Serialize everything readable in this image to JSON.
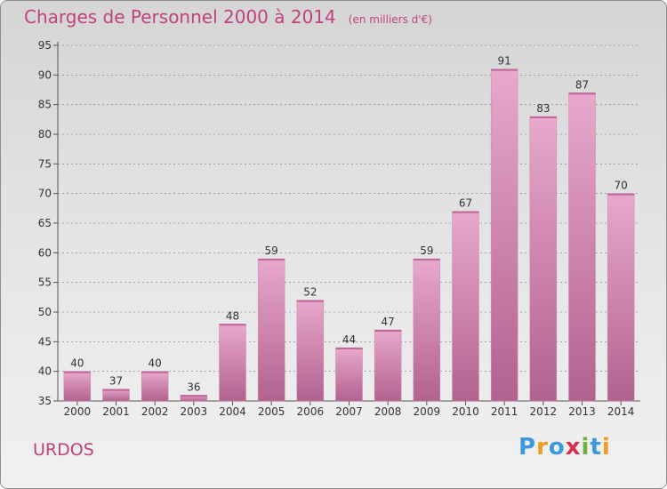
{
  "title": "Charges de Personnel 2000 à 2014",
  "subtitle": "(en milliers d'€)",
  "commune": "URDOS",
  "logo": {
    "text": "Proxiti",
    "letters": [
      "P",
      "r",
      "o",
      "x",
      "i",
      "t",
      "i"
    ],
    "colors": [
      "#3a9ad9",
      "#f29a1f",
      "#3a9ad9",
      "#d6304f",
      "#6cb33f",
      "#3a9ad9",
      "#f29a1f"
    ]
  },
  "colors": {
    "accent": "#c0427e",
    "bar_top": "#e8a8cc",
    "bar_bottom": "#b2628f",
    "grid": "#7a7a7a"
  },
  "chart_data": {
    "type": "bar",
    "title": "Charges de Personnel 2000 à 2014",
    "subtitle": "(en milliers d'€)",
    "categories": [
      "2000",
      "2001",
      "2002",
      "2003",
      "2004",
      "2005",
      "2006",
      "2007",
      "2008",
      "2009",
      "2010",
      "2011",
      "2012",
      "2013",
      "2014"
    ],
    "values": [
      40,
      37,
      40,
      36,
      48,
      59,
      52,
      44,
      47,
      59,
      67,
      91,
      83,
      87,
      70
    ],
    "ylim": [
      35,
      95
    ],
    "yticks": [
      35,
      40,
      45,
      50,
      55,
      60,
      65,
      70,
      75,
      80,
      85,
      90,
      95
    ],
    "grid": "horizontal dashed",
    "data_labels": true
  }
}
